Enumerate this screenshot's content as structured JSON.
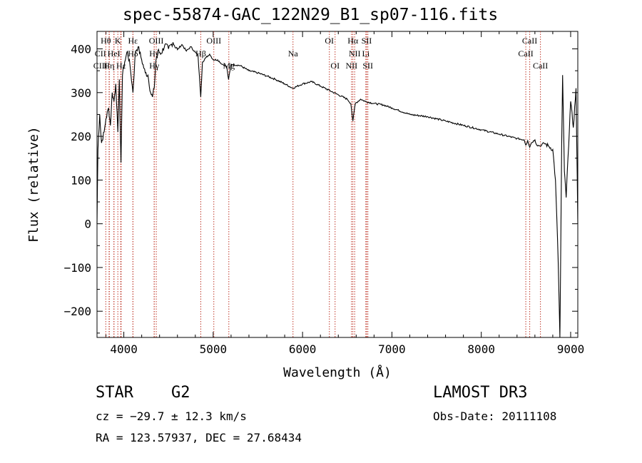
{
  "chart_data": {
    "type": "line",
    "title": "spec-55874-GAC_122N29_B1_sp07-116.fits",
    "xlabel": "Wavelength (Å)",
    "ylabel": "Flux (relative)",
    "xlim": [
      3700,
      9080
    ],
    "ylim": [
      -260,
      440
    ],
    "xticks": [
      4000,
      5000,
      6000,
      7000,
      8000,
      9000
    ],
    "xtick_labels": [
      "4000",
      "5000",
      "6000",
      "7000",
      "8000",
      "9000"
    ],
    "yticks": [
      -200,
      -100,
      0,
      100,
      200,
      300,
      400
    ],
    "ytick_labels": [
      "−200",
      "−100",
      "0",
      "100",
      "200",
      "300",
      "400"
    ],
    "series": [
      {
        "name": "flux",
        "x": [
          3700,
          3710,
          3730,
          3750,
          3780,
          3800,
          3830,
          3850,
          3870,
          3890,
          3910,
          3933,
          3950,
          3968,
          3985,
          4010,
          4040,
          4070,
          4102,
          4130,
          4160,
          4200,
          4240,
          4270,
          4300,
          4320,
          4340,
          4360,
          4380,
          4420,
          4460,
          4500,
          4550,
          4600,
          4650,
          4700,
          4750,
          4800,
          4830,
          4861,
          4880,
          4920,
          4960,
          5000,
          5050,
          5100,
          5150,
          5172,
          5200,
          5300,
          5400,
          5500,
          5600,
          5700,
          5800,
          5890,
          6000,
          6100,
          6200,
          6300,
          6400,
          6500,
          6540,
          6563,
          6590,
          6650,
          6700,
          6800,
          6900,
          7000,
          7200,
          7400,
          7600,
          7800,
          8000,
          8200,
          8400,
          8480,
          8498,
          8520,
          8542,
          8560,
          8600,
          8620,
          8662,
          8700,
          8750,
          8800,
          8830,
          8860,
          8880,
          8900,
          8910,
          8930,
          8950,
          8970,
          9000,
          9030,
          9060,
          9080
        ],
        "y": [
          0,
          170,
          250,
          185,
          210,
          240,
          265,
          225,
          300,
          280,
          320,
          210,
          330,
          140,
          340,
          370,
          395,
          360,
          300,
          395,
          405,
          375,
          345,
          340,
          300,
          290,
          310,
          375,
          395,
          390,
          410,
          400,
          415,
          398,
          410,
          395,
          405,
          392,
          385,
          290,
          370,
          380,
          388,
          375,
          375,
          365,
          360,
          330,
          365,
          362,
          350,
          345,
          338,
          330,
          320,
          310,
          320,
          325,
          315,
          305,
          295,
          285,
          275,
          235,
          275,
          285,
          280,
          275,
          272,
          265,
          250,
          245,
          235,
          225,
          215,
          205,
          195,
          192,
          180,
          190,
          175,
          185,
          192,
          180,
          178,
          185,
          178,
          170,
          100,
          -80,
          -260,
          180,
          340,
          120,
          60,
          150,
          280,
          220,
          310,
          0
        ]
      }
    ],
    "line_markers": [
      {
        "label": "Hθ",
        "x": 3798
      },
      {
        "label": "CII",
        "x": 3838
      },
      {
        "label": "HeI",
        "x": 3889
      },
      {
        "label": "CIII",
        "x": 3890
      },
      {
        "label": "K",
        "x": 3933
      },
      {
        "label": "Hη",
        "x": 3835
      },
      {
        "label": "HeI",
        "x": 3965
      },
      {
        "label": "Hε",
        "x": 3970
      },
      {
        "label": "Hε",
        "x": 4102
      },
      {
        "label": "Hδ",
        "x": 4102
      },
      {
        "label": "OIII",
        "x": 4363
      },
      {
        "label": "Hγ",
        "x": 4340
      },
      {
        "label": "Hγ",
        "x": 4340
      },
      {
        "label": "Hβ",
        "x": 4861
      },
      {
        "label": "OIII",
        "x": 5007
      },
      {
        "label": "Mg",
        "x": 5175
      },
      {
        "label": "Na",
        "x": 5893
      },
      {
        "label": "OI",
        "x": 6300
      },
      {
        "label": "OI",
        "x": 6364
      },
      {
        "label": "Hα",
        "x": 6563
      },
      {
        "label": "NII",
        "x": 6583
      },
      {
        "label": "NII",
        "x": 6548
      },
      {
        "label": "SII",
        "x": 6717
      },
      {
        "label": "SII",
        "x": 6731
      },
      {
        "label": "Li",
        "x": 6708
      },
      {
        "label": "CaII",
        "x": 8498
      },
      {
        "label": "CaII",
        "x": 8542
      },
      {
        "label": "CaII",
        "x": 8662
      }
    ],
    "line_label_rows": [
      {
        "row": 0,
        "labels": [
          [
            "Hθ",
            3798
          ],
          [
            "K",
            3933
          ],
          [
            "Hε",
            4102
          ],
          [
            "OIII",
            4363
          ],
          [
            "OIII",
            5007
          ],
          [
            "OI",
            6300
          ],
          [
            "Hα",
            6563
          ],
          [
            "SII",
            6717
          ],
          [
            "CaII",
            8542
          ]
        ]
      },
      {
        "row": 1,
        "labels": [
          [
            "CII",
            3738
          ],
          [
            "HeI",
            3889
          ],
          [
            "Hδ",
            4102
          ],
          [
            "Hγ",
            4340
          ],
          [
            "Hβ",
            4861
          ],
          [
            "Na",
            5893
          ],
          [
            "NII",
            6583
          ],
          [
            "Li",
            6708
          ],
          [
            "CaII",
            8498
          ]
        ]
      },
      {
        "row": 2,
        "labels": [
          [
            "CIII",
            3738
          ],
          [
            "Hη",
            3835
          ],
          [
            "Hε",
            3970
          ],
          [
            "Hγ",
            4340
          ],
          [
            "Mg",
            5175
          ],
          [
            "OI",
            6364
          ],
          [
            "NII",
            6548
          ],
          [
            "SII",
            6731
          ],
          [
            "CaII",
            8662
          ]
        ]
      }
    ]
  },
  "info": {
    "object_class": "STAR",
    "subclass": "G2",
    "survey": "LAMOST DR3",
    "redshift": "cz = −29.7 ± 12.3 km/s",
    "obs_date": "Obs-Date: 20111108",
    "coords": "RA = 123.57937, DEC =  27.68434"
  },
  "colors": {
    "spectrum": "#000000",
    "marker": "#c0392b",
    "axes": "#000000"
  }
}
